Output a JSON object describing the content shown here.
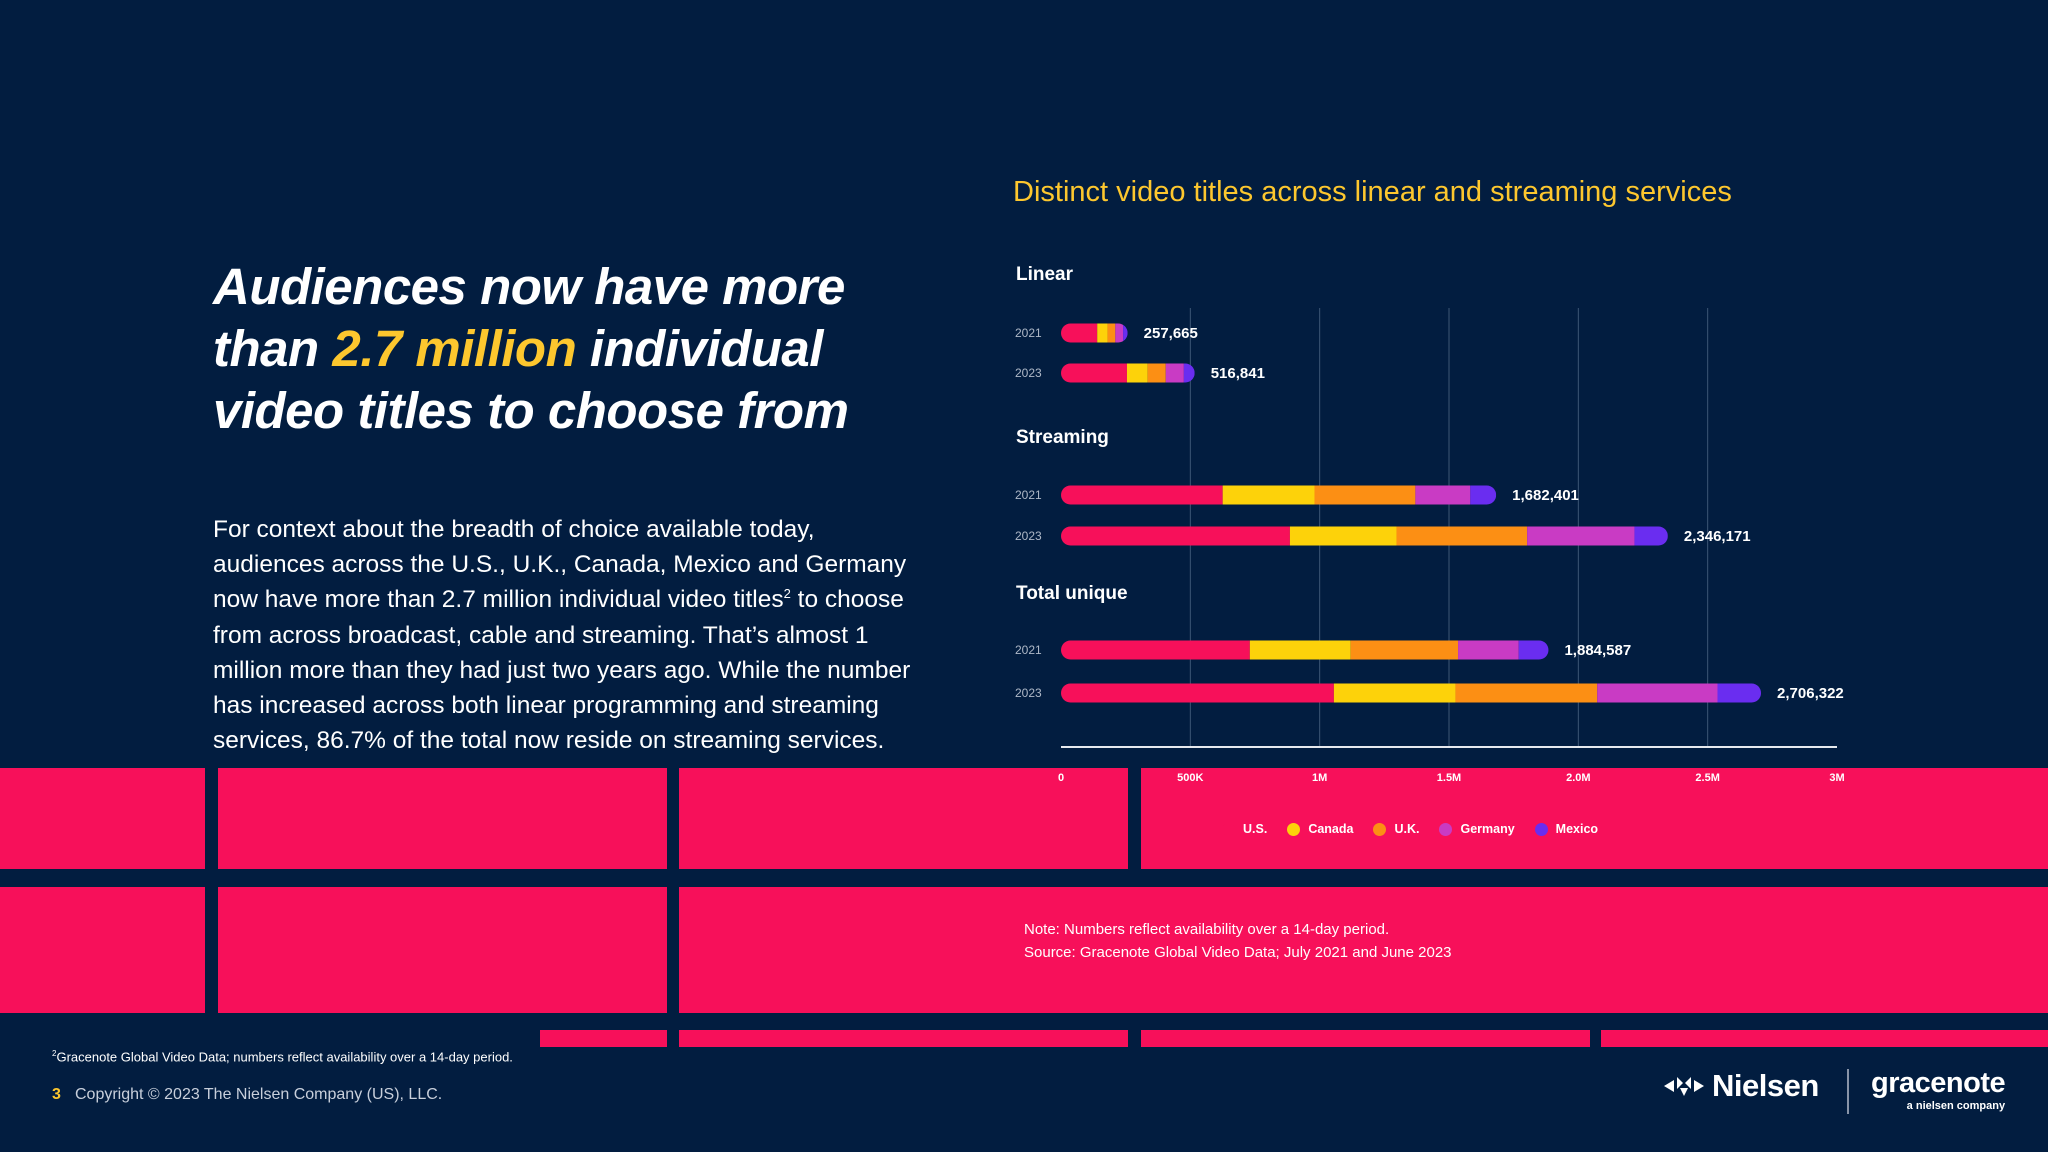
{
  "headline": {
    "part1": "Audiences now have more than ",
    "highlight": "2.7 million",
    "part2": " individual video titles to choose from"
  },
  "body": {
    "part1": "For context about the breadth of choice available today, audiences across the U.S., U.K., Canada, Mexico and Germany now have more than 2.7 million individual video titles",
    "sup": "2",
    "part2": " to choose from across broadcast, cable and streaming. That’s almost 1 million more than they had just two years ago. While the number has increased across both linear programming and streaming services, 86.7% of the total now reside on streaming services."
  },
  "colors": {
    "background": "#021d40",
    "accent_yellow": "#fdc72e",
    "accent_pink": "#f7105a"
  },
  "chart_data": {
    "type": "bar",
    "orientation": "horizontal",
    "stacked": true,
    "title": "Distinct video titles across linear and streaming services",
    "xlim": [
      0,
      3000000
    ],
    "x_ticks": [
      0,
      500000,
      1000000,
      1500000,
      2000000,
      2500000,
      3000000
    ],
    "x_tick_labels": [
      "0",
      "500K",
      "1M",
      "1.5M",
      "2.0M",
      "2.5M",
      "3M"
    ],
    "grid": true,
    "legend_position": "bottom",
    "series_names": [
      "U.S.",
      "Canada",
      "U.K.",
      "Germany",
      "Mexico"
    ],
    "series_colors": [
      "#f7105a",
      "#fdd20a",
      "#fc8f14",
      "#c93bc4",
      "#6a2df0"
    ],
    "groups": [
      {
        "label": "Linear",
        "rows": [
          {
            "year": "2021",
            "total_label": "257,665",
            "total": 257665,
            "values": [
              140000,
              40000,
              30000,
              30000,
              17665
            ]
          },
          {
            "year": "2023",
            "total_label": "516,841",
            "total": 516841,
            "values": [
              255000,
              80000,
              70000,
              70000,
              41841
            ]
          }
        ]
      },
      {
        "label": "Streaming",
        "rows": [
          {
            "year": "2021",
            "total_label": "1,682,401",
            "total": 1682401,
            "values": [
              625000,
              355000,
              390000,
              212401,
              100000
            ]
          },
          {
            "year": "2023",
            "total_label": "2,346,171",
            "total": 2346171,
            "values": [
              885000,
              412000,
              505000,
              415000,
              129171
            ]
          }
        ]
      },
      {
        "label": "Total unique",
        "rows": [
          {
            "year": "2021",
            "total_label": "1,884,587",
            "total": 1884587,
            "values": [
              730000,
              390000,
              415000,
              234587,
              115000
            ]
          },
          {
            "year": "2023",
            "total_label": "2,706,322",
            "total": 2706322,
            "values": [
              1055000,
              470000,
              548000,
              465000,
              168322
            ]
          }
        ]
      }
    ]
  },
  "note": {
    "line1": "Note: Numbers reflect availability over a 14-day period.",
    "line2": "Source: Gracenote Global Video Data; July 2021 and June 2023"
  },
  "footer": {
    "footnote_sup": "2",
    "footnote": "Gracenote Global Video Data; numbers reflect availability over a 14-day period.",
    "page_number": "3",
    "copyright": "Copyright © 2023 The Nielsen Company (US), LLC."
  },
  "logos": {
    "nielsen": "Nielsen",
    "gracenote": "gracenote",
    "gracenote_sub": "a nielsen company"
  }
}
